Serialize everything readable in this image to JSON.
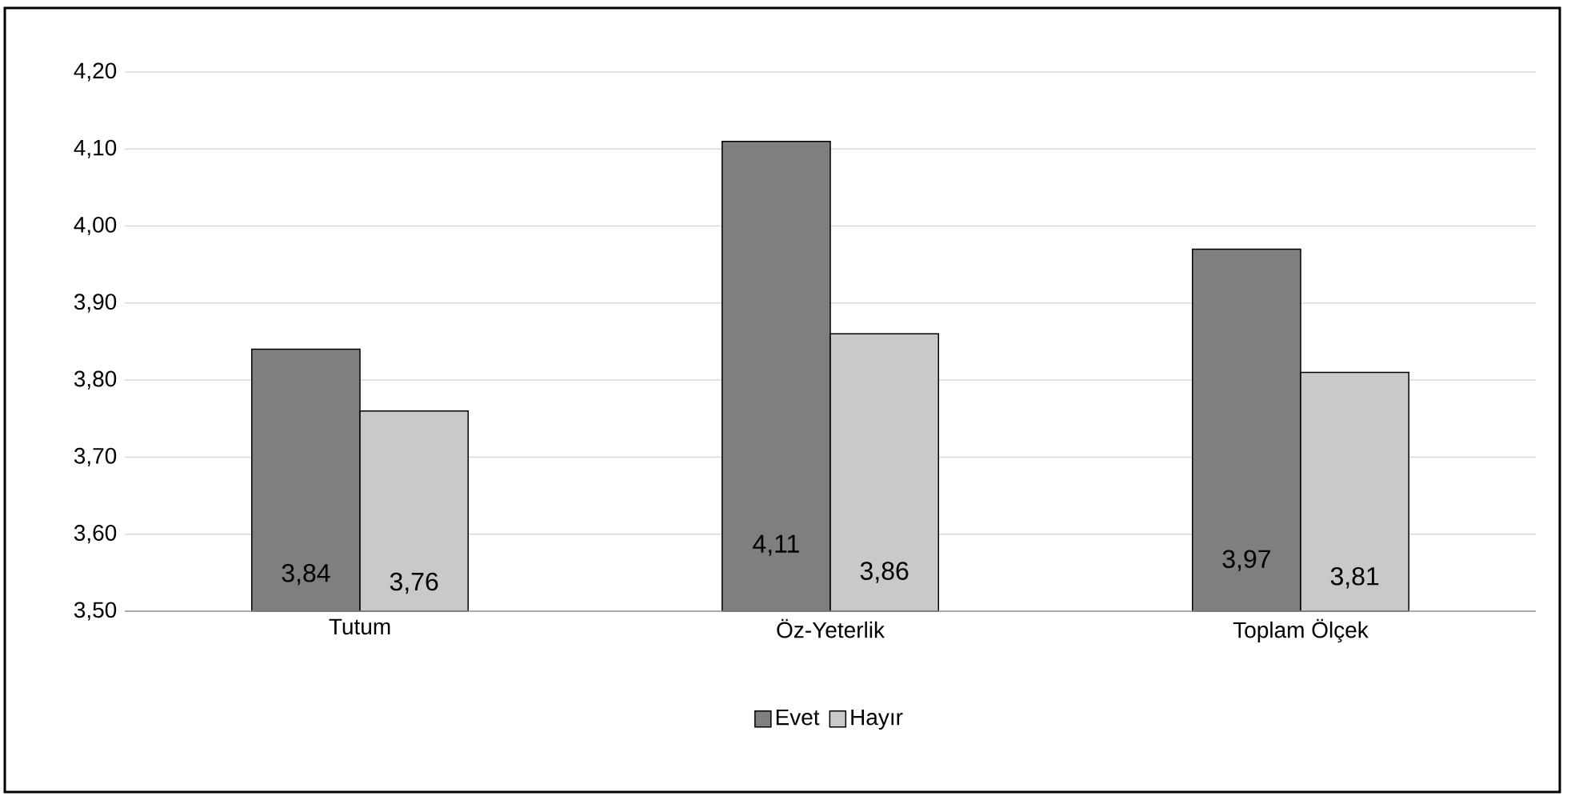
{
  "chart_data": {
    "type": "bar",
    "categories": [
      "Tutum",
      "Öz-Yeterlik",
      "Toplam Ölçek"
    ],
    "series": [
      {
        "name": "Evet",
        "color": "#7f7f7f",
        "values": [
          3.84,
          4.11,
          3.97
        ],
        "value_labels": [
          "3,84",
          "4,11",
          "3,97"
        ]
      },
      {
        "name": "Hayır",
        "color": "#c9c9c9",
        "values": [
          3.76,
          3.86,
          3.81
        ],
        "value_labels": [
          "3,76",
          "3,86",
          "3,81"
        ]
      }
    ],
    "ylim": [
      3.5,
      4.2
    ],
    "yticks": [
      {
        "value": 3.5,
        "label": "3,50"
      },
      {
        "value": 3.6,
        "label": "3,60"
      },
      {
        "value": 3.7,
        "label": "3,70"
      },
      {
        "value": 3.8,
        "label": "3,80"
      },
      {
        "value": 3.9,
        "label": "3,90"
      },
      {
        "value": 4.0,
        "label": "4,00"
      },
      {
        "value": 4.1,
        "label": "4,10"
      },
      {
        "value": 4.2,
        "label": "4,20"
      }
    ],
    "grid": "y",
    "legend": "bottom"
  }
}
